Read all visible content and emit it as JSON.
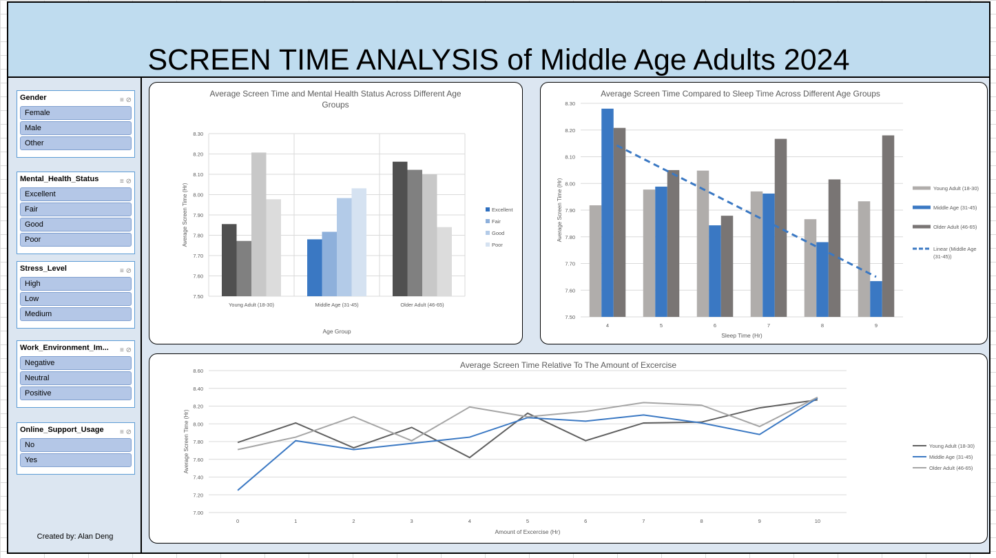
{
  "title": "SCREEN TIME ANALYSIS of Middle Age Adults 2024",
  "credit": "Created by: Alan Deng",
  "slicers": [
    {
      "title": "Gender",
      "items": [
        "Female",
        "Male",
        "Other"
      ]
    },
    {
      "title": "Mental_Health_Status",
      "items": [
        "Excellent",
        "Fair",
        "Good",
        "Poor"
      ]
    },
    {
      "title": "Stress_Level",
      "items": [
        "High",
        "Low",
        "Medium"
      ]
    },
    {
      "title": "Work_Environment_Im...",
      "items": [
        "Negative",
        "Neutral",
        "Positive"
      ]
    },
    {
      "title": "Online_Support_Usage",
      "items": [
        "No",
        "Yes"
      ]
    }
  ],
  "chart_data": [
    {
      "type": "bar",
      "title": "Average Screen Time and Mental Health Status Across Different Age Groups",
      "title_lines": [
        "Average Screen Time and Mental Health Status Across Different Age",
        "Groups"
      ],
      "xlabel": "Age Group",
      "ylabel": "Average Screen Time (Hr)",
      "ylim": [
        7.5,
        8.3
      ],
      "yticks": [
        "7.50",
        "7.60",
        "7.70",
        "7.80",
        "7.90",
        "8.00",
        "8.10",
        "8.20",
        "8.30"
      ],
      "categories": [
        "Young Adult (18-30)",
        "Middle Age (31-45)",
        "Older Adult (46-65)"
      ],
      "legend_position": "right",
      "series": [
        {
          "name": "Excellent",
          "values": [
            7.855,
            7.78,
            8.162
          ]
        },
        {
          "name": "Fair",
          "values": [
            7.772,
            7.817,
            8.122
          ]
        },
        {
          "name": "Good",
          "values": [
            8.207,
            7.983,
            8.1
          ]
        },
        {
          "name": "Poor",
          "values": [
            7.977,
            8.031,
            7.84
          ]
        }
      ],
      "colors": [
        [
          "#505050",
          "#808080",
          "#c8c8c8",
          "#dcdcdc"
        ],
        [
          "#3a78c3",
          "#8eb0db",
          "#b3cbe8",
          "#d5e2f1"
        ],
        [
          "#505050",
          "#808080",
          "#c8c8c8",
          "#dcdcdc"
        ]
      ],
      "legend_colors": [
        "#2e6fbf",
        "#8eb0db",
        "#b3cbe8",
        "#d5e2f1"
      ]
    },
    {
      "type": "bar",
      "title": "Average Screen Time Compared to Sleep Time Across Different Age Groups",
      "xlabel": "Sleep Time (Hr)",
      "ylabel": "Average Screen Time (Hr)",
      "ylim": [
        7.5,
        8.3
      ],
      "yticks": [
        "7.50",
        "7.60",
        "7.70",
        "7.80",
        "7.90",
        "8.00",
        "8.10",
        "8.20",
        "8.30"
      ],
      "categories": [
        "4",
        "5",
        "6",
        "7",
        "8",
        "9"
      ],
      "legend_position": "right",
      "series": [
        {
          "name": "Young Adult (18-30)",
          "values": [
            7.918,
            7.977,
            8.048,
            7.97,
            7.866,
            7.933
          ],
          "color": "#b0adab"
        },
        {
          "name": "Middle Age (31-45)",
          "values": [
            8.28,
            7.988,
            7.843,
            7.962,
            7.78,
            7.634
          ],
          "color": "#3a78c3"
        },
        {
          "name": "Older Adult (46-65)",
          "values": [
            8.208,
            8.05,
            7.879,
            8.167,
            8.015,
            8.18
          ],
          "color": "#797574"
        }
      ],
      "trendline": {
        "name": "Linear (Middle Age (31-45))",
        "name_lines": [
          "Linear (Middle Age",
          "(31-45))"
        ],
        "start": 8.16,
        "end": 7.65,
        "color": "#3a78c3"
      }
    },
    {
      "type": "line",
      "title": "Average Screen Time Relative To The Amount of Excercise",
      "xlabel": "Amount of Excercise (Hr)",
      "ylabel": "Average Screen Time (Hr)",
      "ylim": [
        7.0,
        8.6
      ],
      "yticks": [
        "7.00",
        "7.20",
        "7.40",
        "7.60",
        "7.80",
        "8.00",
        "8.20",
        "8.40",
        "8.60"
      ],
      "x": [
        "0",
        "1",
        "2",
        "3",
        "4",
        "5",
        "6",
        "7",
        "8",
        "9",
        "10"
      ],
      "legend_position": "right",
      "series": [
        {
          "name": "Young Adult (18-30)",
          "values": [
            7.79,
            8.01,
            7.73,
            7.96,
            7.62,
            8.12,
            7.81,
            8.01,
            8.02,
            8.18,
            8.27
          ],
          "color": "#5f5f5f"
        },
        {
          "name": "Middle Age (31-45)",
          "values": [
            7.25,
            7.81,
            7.71,
            7.78,
            7.85,
            8.07,
            8.03,
            8.1,
            8.01,
            7.88,
            8.29
          ],
          "color": "#3a78c3"
        },
        {
          "name": "Older Adult (46-65)",
          "values": [
            7.71,
            7.85,
            8.08,
            7.81,
            8.19,
            8.08,
            8.14,
            8.24,
            8.21,
            7.97,
            8.3
          ],
          "color": "#a5a5a5"
        }
      ]
    }
  ]
}
